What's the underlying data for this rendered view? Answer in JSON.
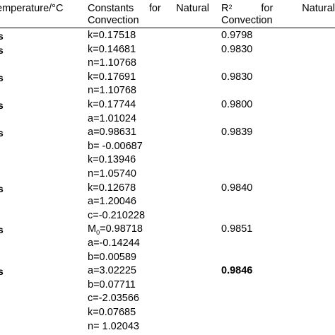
{
  "header": {
    "col1": "emperature/°C",
    "col2_line1_words": [
      "Constants",
      "for",
      "Natural"
    ],
    "col2_line2": "Convection",
    "col3_r": "R",
    "col3_sup": "2",
    "col3_line1_words": [
      "for",
      "Natural"
    ],
    "col3_line2": "Convection"
  },
  "rows": [
    {
      "marker": "s",
      "constants": [
        "k=0.17518"
      ],
      "r2": "0.9798",
      "r2_bold": false
    },
    {
      "marker": "s",
      "constants": [
        "k=0.14681",
        "n=1.10768"
      ],
      "r2": "0.9830",
      "r2_bold": false
    },
    {
      "marker": "s",
      "constants": [
        "k=0.17691",
        "n=1.10768"
      ],
      "r2": "0.9830",
      "r2_bold": false
    },
    {
      "marker": "s",
      "constants": [
        "k=0.17744",
        "a=1.01024"
      ],
      "r2": "0.9800",
      "r2_bold": false
    },
    {
      "marker": "s",
      "constants": [
        "a=0.98631",
        "b= -0.00687",
        "k=0.13946",
        "n=1.05740"
      ],
      "r2": "0.9839",
      "r2_bold": false
    },
    {
      "marker": "s",
      "constants": [
        "k=0.12678",
        "a=1.20046",
        "c=-0.210228"
      ],
      "r2": "0.9840",
      "r2_bold": false
    },
    {
      "marker": "s",
      "constants": [
        "M0=0.98718",
        "a=-0.14244",
        "b=0.00589"
      ],
      "r2": "0.9851",
      "r2_bold": false
    },
    {
      "marker": "s",
      "constants": [
        "a=3.02225",
        "b=0.07711",
        "c=-2.03566",
        "k=0.07685",
        "n= 1.02043"
      ],
      "r2": "0.9846",
      "r2_bold": true
    }
  ]
}
